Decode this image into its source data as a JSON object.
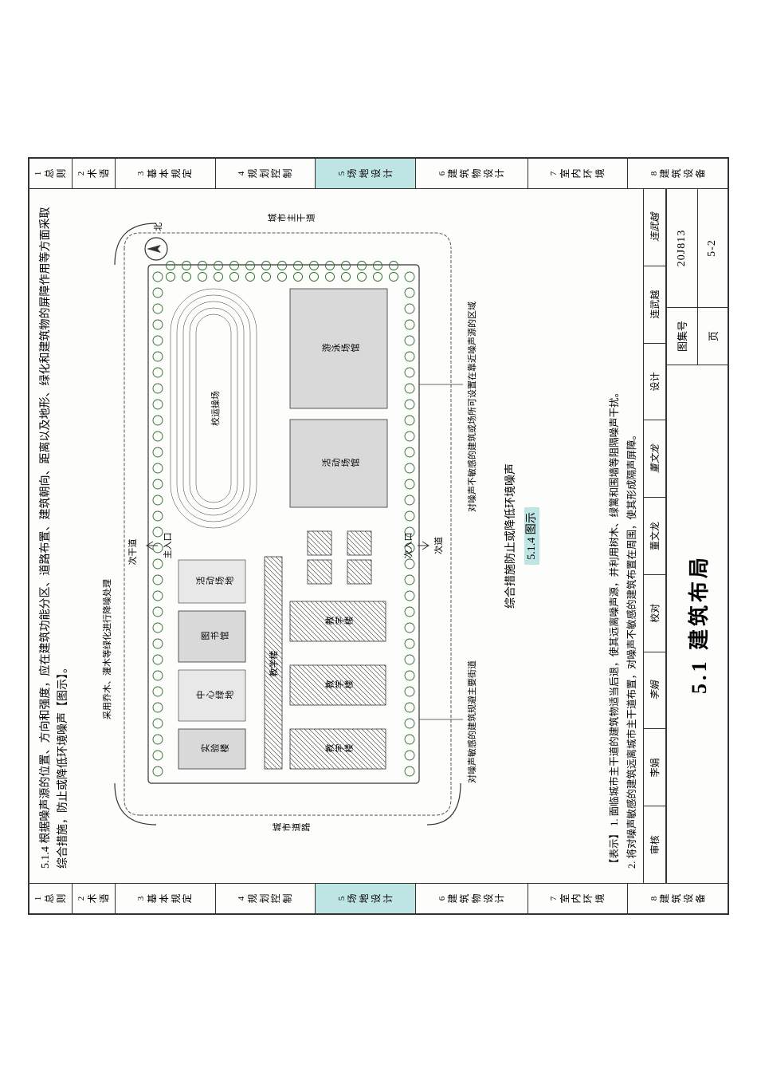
{
  "colors": {
    "highlight": "#bfe4e4",
    "border": "#333333",
    "tree": "#2a6b2a",
    "building_fill": "#d9d9d9",
    "plaza_fill": "#e8e8e8",
    "paper": "#fdfdfc"
  },
  "tabs": [
    {
      "num": "1",
      "label": "总则",
      "short": true
    },
    {
      "num": "2",
      "label": "术语",
      "short": true
    },
    {
      "num": "3",
      "label": "基本规定"
    },
    {
      "num": "4",
      "label": "规划控制"
    },
    {
      "num": "5",
      "label": "场地设计",
      "hl": true
    },
    {
      "num": "6",
      "label": "建筑物设计"
    },
    {
      "num": "7",
      "label": "室内环境"
    },
    {
      "num": "8",
      "label": "建筑设备"
    }
  ],
  "heading": {
    "clause": "5.1.4",
    "text": "根据噪声源的位置、方向和强度，应在建筑功能分区、道路布置、建筑朝向、距离以及地形、绿化和建筑物的屏障作用等方面采取综合措施，防止或降低环境噪声【图示】。"
  },
  "plan": {
    "north_label": "北",
    "annotations": {
      "top_method": "采用乔木、灌木等绿化进行降噪处理",
      "left_road_v": "城市道路",
      "right_road_v": "城市主干道",
      "top_road": "次干道",
      "main_entry": "主入口",
      "sec_entry": "次入口",
      "main_arterial": "次道",
      "bottom_left": "对噪声敏感的建筑规避主要街道",
      "bottom_right": "对噪声不敏感的建筑或场所可设置在靠近噪声源的区域",
      "caption_upper": "综合措施防止或降低环境噪声"
    },
    "buildings": {
      "lab": "实验楼",
      "center": "中心绿地",
      "library": "图书馆",
      "act_field": "活动场地",
      "stadium": "校运操场",
      "teach_bldg": "教学楼",
      "teach1": "教学楼",
      "teach2": "教学楼",
      "teach3": "教学楼",
      "activity": "活动场馆",
      "pool": "游泳场馆"
    },
    "caption": "5.1.4 图示"
  },
  "notes": {
    "prefix": "【表示】",
    "item1": "1. 面临城市主干道的建筑物适当后退，使其远离噪声源，并利用树木、绿篱和围墙等阻隔噪声干扰。",
    "item2": "2. 将对噪声敏感的建筑远离城市主干道布置，对噪声不敏感的建筑布置在周围，使其形成隔声屏障。"
  },
  "title_block": {
    "title": "5.1 建筑布局",
    "atlas_label": "图集号",
    "atlas_no": "20J813",
    "page_label": "页",
    "page_no": "5-2"
  },
  "signatures": {
    "review_lbl": "审核",
    "review_name": "李娟",
    "review_sig": "李娟",
    "proof_lbl": "校对",
    "proof_name": "董文龙",
    "proof_sig": "董文龙",
    "design_lbl": "设计",
    "design_name": "连武越",
    "design_sig": "连武越"
  }
}
